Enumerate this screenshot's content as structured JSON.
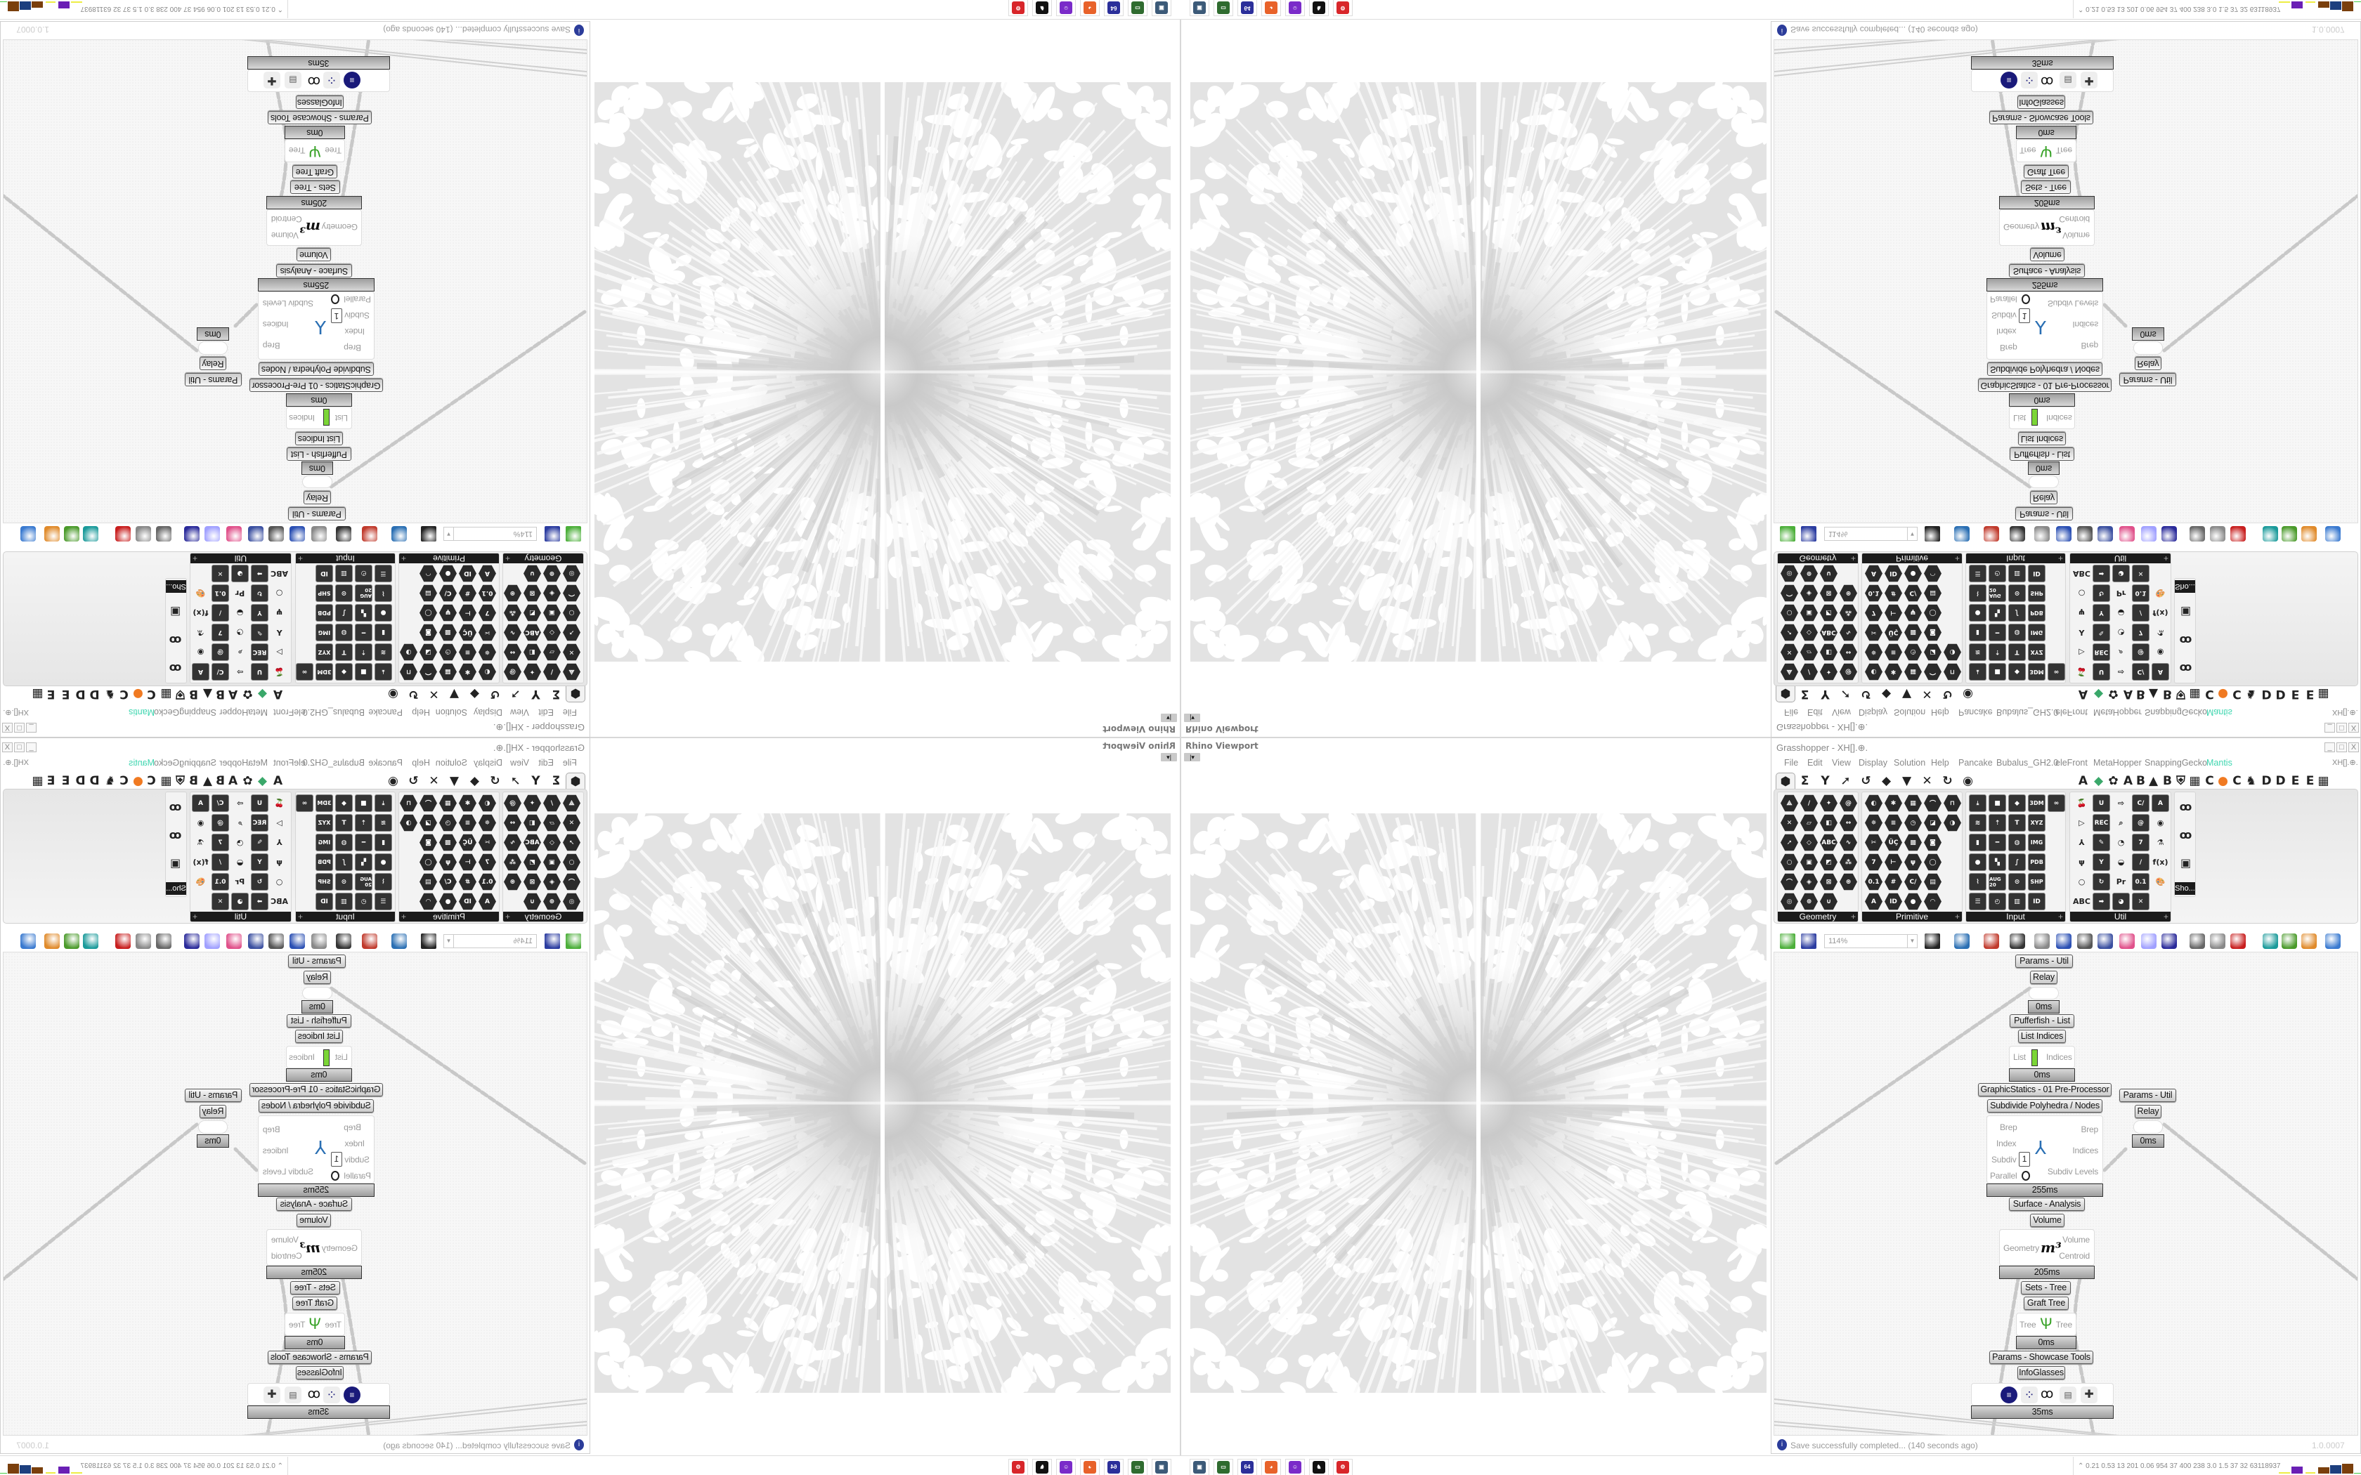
{
  "viewport": {
    "title": "Rhino Viewport"
  },
  "grasshopper": {
    "title": "Grasshopper - XH[].⊕.",
    "doc_label": "XH[].⊕.",
    "window_controls": [
      "_",
      "□",
      "X"
    ],
    "menu": [
      "File",
      "Edit",
      "View",
      "Display",
      "Solution",
      "Help",
      "Pancake",
      "Bubalus_GH2.0",
      "eleFront",
      "MetaHopper",
      "SnappingGecko",
      "Mantis"
    ],
    "menu_accent_color": "#3fd6b0",
    "tabs_left": [
      {
        "name": "params-tab-icon",
        "glyph": "⬢"
      },
      {
        "name": "maths-tab-icon",
        "glyph": "Σ"
      },
      {
        "name": "sets-tab-icon",
        "glyph": "Y"
      },
      {
        "name": "vector-tab-icon",
        "glyph": "➚"
      },
      {
        "name": "curve-tab-icon",
        "glyph": "↺"
      },
      {
        "name": "surface-tab-icon",
        "glyph": "◆"
      },
      {
        "name": "mesh-tab-icon",
        "glyph": "▼"
      },
      {
        "name": "intersect-tab-icon",
        "glyph": "✕"
      },
      {
        "name": "transform-tab-icon",
        "glyph": "↻"
      },
      {
        "name": "display-tab-icon",
        "glyph": "◉"
      }
    ],
    "tabs_right": [
      "A",
      "◆",
      "✿",
      "A",
      "B",
      "▲",
      "B",
      "⛨",
      "▦",
      "C",
      "●",
      "C",
      "♞",
      "D",
      "D",
      "E",
      "E",
      "▦"
    ],
    "panels": [
      {
        "label": "Geometry",
        "icons": [
          {
            "n": "box-icon",
            "g": "⟁"
          },
          {
            "n": "line-icon",
            "g": "/"
          },
          {
            "n": "point-icon",
            "g": "✦"
          },
          {
            "n": "spiral-icon",
            "g": "@"
          },
          {
            "n": "circle-x-icon",
            "g": "✕"
          },
          {
            "n": "plane-icon",
            "g": "▱"
          },
          {
            "n": "face-icon",
            "g": "◧"
          },
          {
            "n": "arrow-both-icon",
            "g": "↔"
          },
          {
            "n": "vector-icon",
            "g": "➚"
          },
          {
            "n": "rhombus-icon",
            "g": "◇"
          },
          {
            "n": "text-abc-icon",
            "g": "ABC"
          },
          {
            "n": "wave-icon",
            "g": "∿"
          },
          {
            "n": "circle-icon",
            "g": "○"
          },
          {
            "n": "cube-icon",
            "g": "▣"
          },
          {
            "n": "surface-icon",
            "g": "◩"
          },
          {
            "n": "mesh-point-icon",
            "g": "⁂"
          },
          {
            "n": "curve-icon",
            "g": "⌒"
          },
          {
            "n": "brep-icon",
            "g": "◈"
          },
          {
            "n": "map-icon",
            "g": "⊠"
          },
          {
            "n": "field-icon",
            "g": "⊛"
          },
          {
            "n": "swirl-icon",
            "g": "◎"
          },
          {
            "n": "sphere-icon",
            "g": "⊕"
          },
          {
            "n": "magnet-icon",
            "g": "∪"
          }
        ]
      },
      {
        "label": "Primitive",
        "icons": [
          {
            "n": "drop-icon",
            "g": "◐"
          },
          {
            "n": "star-icon",
            "g": "✱"
          },
          {
            "n": "grid-icon",
            "g": "▦"
          },
          {
            "n": "arc-icon",
            "g": "⌒"
          },
          {
            "n": "bracket-icon",
            "g": "⊓"
          },
          {
            "n": "web-icon",
            "g": "✵"
          },
          {
            "n": "stripes-icon",
            "g": "≡"
          },
          {
            "n": "clock-icon",
            "g": "◷"
          },
          {
            "n": "image-icon",
            "g": "◪"
          },
          {
            "n": "shader-icon",
            "g": "◑"
          },
          {
            "n": "scissors-icon",
            "g": "✂"
          },
          {
            "n": "uc-icon",
            "g": "ÜÇ"
          },
          {
            "n": "pattern-icon",
            "g": "▩"
          },
          {
            "n": "camera-icon",
            "g": "◙"
          },
          {
            "n": "integer-icon",
            "g": "7"
          },
          {
            "n": "domain-icon",
            "g": "⊢"
          },
          {
            "n": "tree-icon",
            "g": "ψ"
          },
          {
            "n": "ring-icon",
            "g": "◯"
          },
          {
            "n": "number-icon",
            "g": "0.1"
          },
          {
            "n": "hash-icon",
            "g": "#"
          },
          {
            "n": "complex-icon",
            "g": "C/"
          },
          {
            "n": "file-icon",
            "g": "▤"
          },
          {
            "n": "text-icon",
            "g": "A"
          },
          {
            "n": "guid-icon",
            "g": "ID"
          },
          {
            "n": "shaded-sphere-icon",
            "g": "●"
          },
          {
            "n": "arc-fill-icon",
            "g": "◠"
          }
        ]
      },
      {
        "label": "Input",
        "icons": [
          {
            "n": "import-icon",
            "g": "⤓"
          },
          {
            "n": "button-icon",
            "g": "■"
          },
          {
            "n": "gem-icon",
            "g": "◆"
          },
          {
            "n": "import-3dm-icon",
            "g": "3DM"
          },
          {
            "n": "goggles-icon",
            "g": "∞"
          },
          {
            "n": "graph-icon",
            "g": "≋"
          },
          {
            "n": "gradient-icon",
            "g": "⇡"
          },
          {
            "n": "t-icon",
            "g": "T"
          },
          {
            "n": "import-xyz-icon",
            "g": "XYZ"
          },
          {
            "n": "toggle-icon",
            "g": "▮"
          },
          {
            "n": "slider-icon",
            "g": "━"
          },
          {
            "n": "color-wheel-icon",
            "g": "◍"
          },
          {
            "n": "import-img-icon",
            "g": "IMG"
          },
          {
            "n": "knob-icon",
            "g": "●"
          },
          {
            "n": "checker-icon",
            "g": "▚"
          },
          {
            "n": "graph-mapper-icon",
            "g": "∫"
          },
          {
            "n": "import-pdb-icon",
            "g": "PDB"
          },
          {
            "n": "value-list-icon",
            "g": "⌇"
          },
          {
            "n": "calendar-icon",
            "g": "AUG 20"
          },
          {
            "n": "target-icon",
            "g": "⊙"
          },
          {
            "n": "import-shp-icon",
            "g": "SHP"
          },
          {
            "n": "list-icon",
            "g": "☰"
          },
          {
            "n": "clock-icon",
            "g": "◴"
          },
          {
            "n": "color-swatch-icon",
            "g": "▥"
          },
          {
            "n": "id-tag-icon",
            "g": "ID"
          }
        ]
      },
      {
        "label": "Util",
        "icons": [
          {
            "n": "cherry-icon",
            "g": "🍒"
          },
          {
            "n": "magnet-icon",
            "g": "U"
          },
          {
            "n": "arrow-right-icon",
            "g": "⇨"
          },
          {
            "n": "cluster-c-icon",
            "g": "C/"
          },
          {
            "n": "cluster-a-icon",
            "g": "A"
          },
          {
            "n": "play-icon",
            "g": "▷"
          },
          {
            "n": "record-icon",
            "g": "REC"
          },
          {
            "n": "search-icon",
            "g": "⌕"
          },
          {
            "n": "spiral-cluster-icon",
            "g": "@"
          },
          {
            "n": "disc-icon",
            "g": "◉"
          },
          {
            "n": "axes-icon",
            "g": "⅄"
          },
          {
            "n": "pencil-icon",
            "g": "✎"
          },
          {
            "n": "timer-icon",
            "g": "◔"
          },
          {
            "n": "integer-cluster-icon",
            "g": "7"
          },
          {
            "n": "flask-icon",
            "g": "⚗"
          },
          {
            "n": "tree-image-icon",
            "g": "ψ"
          },
          {
            "n": "probe-icon",
            "g": "Y"
          },
          {
            "n": "egg-icon",
            "g": "◒"
          },
          {
            "n": "line-cluster-icon",
            "g": "/"
          },
          {
            "n": "function-icon",
            "g": "f(x)"
          },
          {
            "n": "ring-icon",
            "g": "○"
          },
          {
            "n": "refresh-icon",
            "g": "↻"
          },
          {
            "n": "premiere-icon",
            "g": "Pr"
          },
          {
            "n": "number-cluster-icon",
            "g": "0.1"
          },
          {
            "n": "palette-icon",
            "g": "🎨"
          },
          {
            "n": "abc-icon",
            "g": "ABC"
          },
          {
            "n": "arrow-fat-icon",
            "g": "➡"
          },
          {
            "n": "gauge-cluster-icon",
            "g": "◕"
          },
          {
            "n": "x-cluster-icon",
            "g": "✕"
          }
        ]
      }
    ],
    "showcase_panel": {
      "label": "Sho...",
      "icons": [
        "infoglasses-icon",
        "infoglasses-alt-icon",
        "presentation-icon"
      ]
    },
    "toolbar": {
      "zoom": "114%",
      "items": [
        "open-file-icon",
        "save-file-icon",
        "zoom-extents-icon",
        "preview-eye-icon",
        "sketch-pen-icon",
        "bake-icon",
        "email-icon",
        "gha-icon",
        "screenshot-icon",
        "search-s-icon",
        "package-icon",
        "lightbulb-icon",
        "wires-icon",
        "shaded-icon",
        "wireframe-icon",
        "red-shape-icon",
        "teal-shape-icon",
        "green-shape-icon",
        "half-sphere-icon",
        "blue-sphere-icon"
      ]
    },
    "canvas": {
      "nodes": {
        "params_util": "Params - Util",
        "relay": "Relay",
        "t_relay": "0ms",
        "pufferfish": "Pufferfish - List",
        "list_indices": "List Indices",
        "list_in": "List",
        "list_out": "Indices",
        "t_list": "0ms",
        "graphicstatics": "GraphicStatics - 01 Pre-Processor",
        "subdivide": "Subdivide Polyhedra / Nodes",
        "sub_inputs": [
          "Brep",
          "Index",
          "Subdiv",
          "Parallel"
        ],
        "sub_outputs": [
          "Brep",
          "Indices",
          "Subdiv Levels"
        ],
        "subdiv_value": "1",
        "t_subdivide": "255ms",
        "surface_analysis": "Surface - Analysis",
        "volume": "Volume",
        "vol_in": "Geometry",
        "vol_outputs": [
          "Volume",
          "Centroid"
        ],
        "vol_glyph": "m³",
        "t_volume": "205ms",
        "sets_tree": "Sets - Tree",
        "graft_tree": "Graft Tree",
        "tree_in": "Tree",
        "tree_out": "Tree",
        "t_graft": "0ms",
        "showcase": "Params - Showcase Tools",
        "infoglasses": "InfoGlasses",
        "t_info": "35ms",
        "params_util_2": "Params - Util",
        "relay_2": "Relay",
        "t_relay_2": "0ms"
      }
    },
    "status": {
      "message": "Save successfully completed... (140 seconds ago)",
      "version": "1.0.0007"
    }
  },
  "taskbar": {
    "apps": [
      {
        "name": "remote-desktop-icon",
        "color": "#3c5a78",
        "glyph": "▣"
      },
      {
        "name": "device-manager-icon",
        "color": "#2f6b2f",
        "glyph": "▭"
      },
      {
        "name": "floppy-64-icon",
        "color": "#2b2f9a",
        "glyph": "64"
      },
      {
        "name": "firefox-icon",
        "color": "#e8622a",
        "glyph": "◕"
      },
      {
        "name": "discord-icon",
        "color": "#7a2bc9",
        "glyph": "☺"
      },
      {
        "name": "rhino-icon",
        "color": "#111111",
        "glyph": "♞"
      },
      {
        "name": "settings-gear-icon",
        "color": "#d8262a",
        "glyph": "⚙"
      }
    ],
    "tray": {
      "stats": "0.21 0.53  13  201 0.06 954  37  400  238  3.0  1.5  37  32 63118937"
    }
  }
}
